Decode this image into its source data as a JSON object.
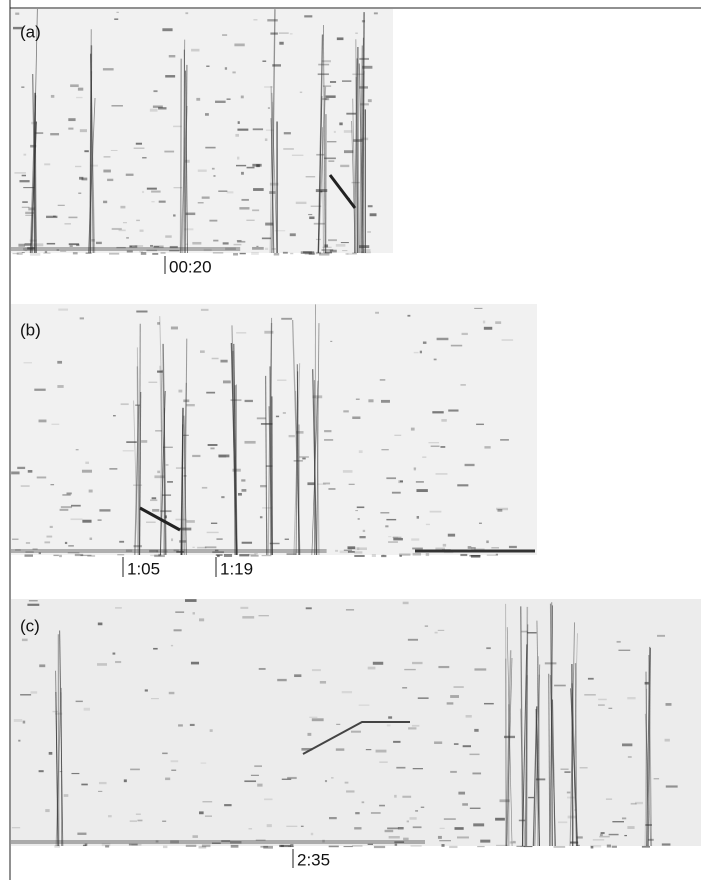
{
  "panels": [
    {
      "label": "(a)",
      "markers": [
        "00:20"
      ]
    },
    {
      "label": "(b)",
      "markers": [
        "1:05",
        "1:19"
      ]
    },
    {
      "label": "(c)",
      "markers": [
        "2:35"
      ]
    }
  ]
}
